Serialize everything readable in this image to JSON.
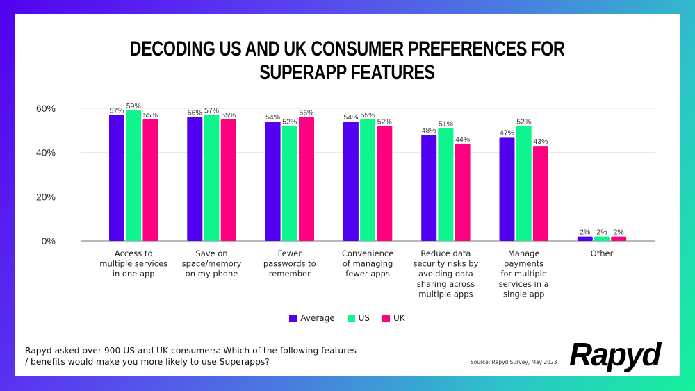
{
  "header": {
    "title": "DECODING US AND UK CONSUMER PREFERENCES FOR SUPERAPP FEATURES"
  },
  "chart_data": {
    "type": "bar",
    "title": "DECODING US AND UK CONSUMER PREFERENCES FOR SUPERAPP FEATURES",
    "xlabel": "",
    "ylabel": "",
    "ylim": [
      0,
      60
    ],
    "yticks": [
      0,
      20,
      40,
      60
    ],
    "ytick_labels": [
      "0%",
      "20%",
      "40%",
      "60%"
    ],
    "grid": true,
    "legend_position": "bottom",
    "categories": [
      [
        "Access to",
        "multiple services",
        "in one app"
      ],
      [
        "Save on",
        "space/memory",
        "on my phone"
      ],
      [
        "Fewer",
        "passwords to",
        "remember"
      ],
      [
        "Convenience",
        "of managing",
        "fewer apps"
      ],
      [
        "Reduce data",
        "security risks by",
        "avoiding data",
        "sharing across",
        "multiple apps"
      ],
      [
        "Manage",
        "payments",
        "for multiple",
        "services in a",
        "single app"
      ],
      [
        "Other"
      ]
    ],
    "series": [
      {
        "name": "Average",
        "color": "#5200f0",
        "values": [
          57,
          56,
          54,
          54,
          48,
          47,
          2
        ],
        "labels": [
          "57%",
          "56%",
          "54%",
          "54%",
          "48%",
          "47%",
          "2%"
        ]
      },
      {
        "name": "US",
        "color": "#0ff58e",
        "values": [
          59,
          57,
          52,
          55,
          51,
          52,
          2
        ],
        "labels": [
          "59%",
          "57%",
          "52%",
          "55%",
          "51%",
          "52%",
          "2%"
        ]
      },
      {
        "name": "UK",
        "color": "#ff0080",
        "values": [
          55,
          55,
          56,
          52,
          44,
          43,
          2
        ],
        "labels": [
          "55%",
          "55%",
          "56%",
          "52%",
          "44%",
          "43%",
          "2%"
        ]
      }
    ]
  },
  "footer": {
    "question": "Rapyd asked over 900 US and UK consumers: Which of the following features / benefits would make you more likely to use Superapps?",
    "source": "Source: Rapyd Survey, May 2023",
    "logo_text": "Rapyd"
  }
}
